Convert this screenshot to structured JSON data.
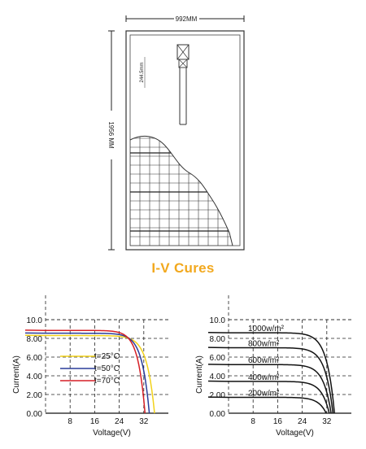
{
  "panel": {
    "width_label": "992MM",
    "height_label": "1956 MM",
    "box_label": "244.5mm"
  },
  "heading": "I-V Cures",
  "chart_data": [
    {
      "type": "line",
      "title": "",
      "xlabel": "Voltage(V)",
      "ylabel": "Current(A)",
      "xlim": [
        0,
        40
      ],
      "ylim": [
        0,
        10
      ],
      "xticks": [
        "8",
        "16",
        "24",
        "32"
      ],
      "yticks": [
        "0.00",
        "2.00",
        "4.00",
        "6.00",
        "8.00",
        "10.0"
      ],
      "grid": true,
      "legend_placement": "left",
      "series": [
        {
          "name": "t=25°C",
          "color": "#f2d21b",
          "isc": 8.3,
          "voc": 35.5,
          "k": 2.5
        },
        {
          "name": "t=50°C",
          "color": "#2a3d9a",
          "isc": 8.55,
          "voc": 33.8,
          "k": 2.4
        },
        {
          "name": "t=70°C",
          "color": "#d61f26",
          "isc": 8.85,
          "voc": 32.4,
          "k": 2.3
        }
      ]
    },
    {
      "type": "line",
      "title": "",
      "xlabel": "Voltage(V)",
      "ylabel": "Current(A)",
      "xlim": [
        0,
        40
      ],
      "ylim": [
        0,
        10
      ],
      "xticks": [
        "8",
        "16",
        "24",
        "32"
      ],
      "yticks": [
        "0.00",
        "2.00",
        "4.00",
        "6.00",
        "8.00",
        "10.0"
      ],
      "grid": true,
      "series": [
        {
          "name": "1000w/m²",
          "color": "#111111",
          "isc": 8.6,
          "voc": 34.5,
          "k": 2.5
        },
        {
          "name": "800w/m²",
          "color": "#111111",
          "isc": 7.0,
          "voc": 34.0,
          "k": 2.5
        },
        {
          "name": "600w/m²",
          "color": "#111111",
          "isc": 5.2,
          "voc": 33.4,
          "k": 2.5
        },
        {
          "name": "400w/m²",
          "color": "#111111",
          "isc": 3.4,
          "voc": 32.8,
          "k": 2.5
        },
        {
          "name": "200w/m²",
          "color": "#111111",
          "isc": 1.7,
          "voc": 31.8,
          "k": 2.5
        }
      ]
    }
  ]
}
